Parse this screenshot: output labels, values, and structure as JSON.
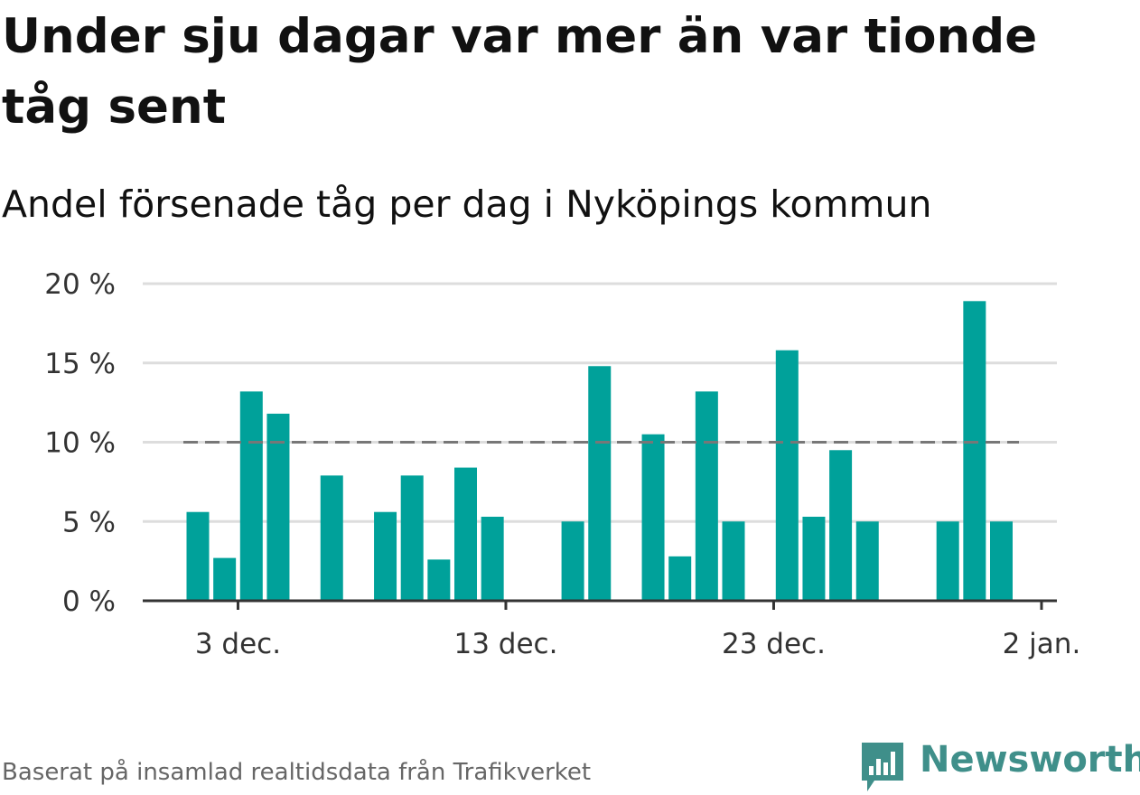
{
  "title": "Under sju dagar var mer än var tionde tåg sent",
  "subtitle": "Andel försenade tåg per dag i Nyköpings kommun",
  "source": "Baserat på insamlad realtidsdata från Trafikverket",
  "logo": {
    "text": "Newsworthy",
    "icon": "newsworthy-bar-chart-icon",
    "color": "#3f8f8a"
  },
  "colors": {
    "bar": "#00a19a",
    "grid": "#dddddd",
    "axis": "#333333",
    "reference": "#777777"
  },
  "chart_data": {
    "type": "bar",
    "x": [
      "2023-12-01",
      "2023-12-02",
      "2023-12-03",
      "2023-12-04",
      "2023-12-05",
      "2023-12-06",
      "2023-12-07",
      "2023-12-08",
      "2023-12-09",
      "2023-12-10",
      "2023-12-11",
      "2023-12-12",
      "2023-12-13",
      "2023-12-14",
      "2023-12-15",
      "2023-12-16",
      "2023-12-17",
      "2023-12-18",
      "2023-12-19",
      "2023-12-20",
      "2023-12-21",
      "2023-12-22",
      "2023-12-23",
      "2023-12-24",
      "2023-12-25",
      "2023-12-26",
      "2023-12-27",
      "2023-12-28",
      "2023-12-29",
      "2023-12-30",
      "2023-12-31",
      "2024-01-01"
    ],
    "values": [
      5.6,
      2.7,
      13.2,
      11.8,
      0,
      7.9,
      0,
      5.6,
      7.9,
      2.6,
      8.4,
      5.3,
      0,
      0,
      5.0,
      14.8,
      0,
      10.5,
      2.8,
      13.2,
      5.0,
      0,
      15.8,
      5.3,
      9.5,
      5.0,
      0,
      0,
      5.0,
      18.9,
      5.0,
      0
    ],
    "reference_line": 10,
    "ylim": [
      0,
      20
    ],
    "yticks": [
      "0 %",
      "5 %",
      "10 %",
      "15 %",
      "20 %"
    ],
    "ytick_values": [
      0,
      5,
      10,
      15,
      20
    ],
    "xticks": [
      "3 dec.",
      "13 dec.",
      "23 dec.",
      "2 jan."
    ],
    "xtick_dates": [
      "2023-12-03",
      "2023-12-13",
      "2023-12-23",
      "2024-01-02"
    ],
    "grid": true,
    "xlabel": "",
    "ylabel": ""
  }
}
